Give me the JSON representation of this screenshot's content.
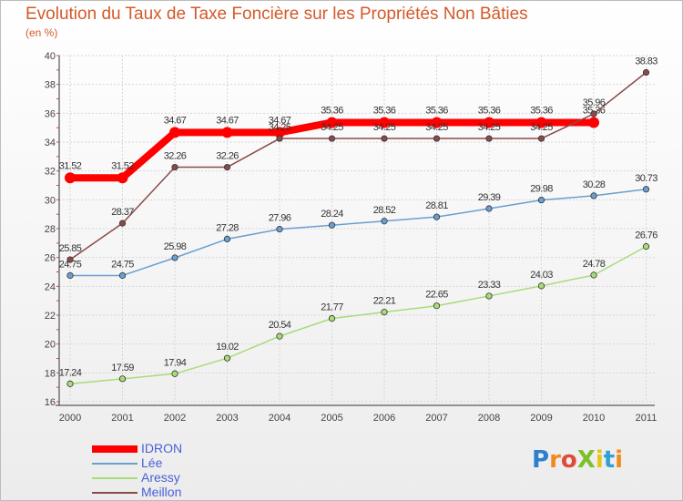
{
  "title": "Evolution du Taux de Taxe Foncière sur les Propriétés Non Bâties",
  "subtitle": "(en %)",
  "brand": "ProXiti",
  "chart_data": {
    "type": "line",
    "x": [
      "2000",
      "2001",
      "2002",
      "2003",
      "2004",
      "2005",
      "2006",
      "2007",
      "2008",
      "2009",
      "2010",
      "2011"
    ],
    "ylim": [
      16,
      40
    ],
    "yticks": [
      16,
      18,
      20,
      22,
      24,
      26,
      28,
      30,
      32,
      34,
      36,
      38,
      40
    ],
    "grid": true,
    "legend_position": "bottom-left",
    "series": [
      {
        "name": "IDRON",
        "color": "#ff0000",
        "values": [
          31.52,
          31.52,
          34.67,
          34.67,
          34.67,
          35.36,
          35.36,
          35.36,
          35.36,
          35.36,
          35.36,
          null
        ],
        "labels": [
          "31.52",
          "31.52",
          "34.67",
          "34.67",
          "34.67",
          "35.36",
          "35.36",
          "35.36",
          "35.36",
          "35.36",
          "35.36",
          ""
        ]
      },
      {
        "name": "Lée",
        "color": "#6a9fd0",
        "values": [
          24.75,
          24.75,
          25.98,
          27.28,
          27.96,
          28.24,
          28.52,
          28.81,
          29.39,
          29.98,
          30.28,
          30.73
        ],
        "labels": [
          "24.75",
          "24.75",
          "25.98",
          "27.28",
          "27.96",
          "28.24",
          "28.52",
          "28.81",
          "29.39",
          "29.98",
          "30.28",
          "30.73"
        ]
      },
      {
        "name": "Aressy",
        "color": "#a8dc78",
        "values": [
          17.24,
          17.59,
          17.94,
          19.02,
          20.54,
          21.77,
          22.21,
          22.65,
          23.33,
          24.03,
          24.78,
          26.76
        ],
        "labels": [
          "17.24",
          "17.59",
          "17.94",
          "19.02",
          "20.54",
          "21.77",
          "22.21",
          "22.65",
          "23.33",
          "24.03",
          "24.78",
          "26.76"
        ]
      },
      {
        "name": "Meillon",
        "color": "#8a4a4a",
        "values": [
          25.85,
          28.37,
          32.26,
          32.26,
          34.25,
          34.25,
          34.25,
          34.25,
          34.25,
          34.25,
          35.96,
          38.83
        ],
        "labels": [
          "25.85",
          "28.37",
          "32.26",
          "32.26",
          "34.25",
          "34.25",
          "34.25",
          "34.25",
          "34.25",
          "34.25",
          "35.96",
          "38.83"
        ]
      }
    ]
  }
}
